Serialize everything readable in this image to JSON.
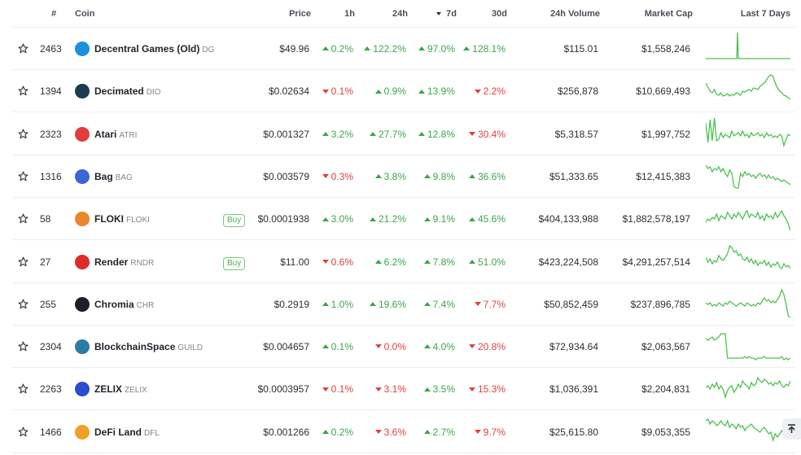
{
  "header": {
    "rank": "#",
    "coin": "Coin",
    "price": "Price",
    "h1": "1h",
    "h24": "24h",
    "d7": "7d",
    "d30": "30d",
    "volume": "24h Volume",
    "mcap": "Market Cap",
    "last7": "Last 7 Days"
  },
  "colors": {
    "up": "#3aa64a",
    "down": "#e0413f",
    "spark": "#4cc24f"
  },
  "rows": [
    {
      "rank": "2463",
      "name": "Decentral Games (Old)",
      "symbol": "DG",
      "price": "$49.96",
      "h1": "0.2%",
      "h1_dir": "up",
      "h24": "122.2%",
      "h24_dir": "up",
      "d7": "97.0%",
      "d7_dir": "up",
      "d30": "128.1%",
      "d30_dir": "up",
      "volume": "$115.01",
      "mcap": "$1,558,246",
      "logo": "#1f8fe0",
      "icon": "dg-logo-icon"
    },
    {
      "rank": "1394",
      "name": "Decimated",
      "symbol": "DIO",
      "price": "$0.02634",
      "h1": "0.1%",
      "h1_dir": "down",
      "h24": "0.9%",
      "h24_dir": "up",
      "d7": "13.9%",
      "d7_dir": "up",
      "d30": "2.2%",
      "d30_dir": "down",
      "volume": "$256,878",
      "mcap": "$10,669,493",
      "logo": "#1b3b4f",
      "icon": "dio-logo-icon"
    },
    {
      "rank": "2323",
      "name": "Atari",
      "symbol": "ATRI",
      "price": "$0.001327",
      "h1": "3.2%",
      "h1_dir": "up",
      "h24": "27.7%",
      "h24_dir": "up",
      "d7": "12.8%",
      "d7_dir": "up",
      "d30": "30.4%",
      "d30_dir": "down",
      "volume": "$5,318.57",
      "mcap": "$1,997,752",
      "logo": "#e23b3b",
      "icon": "atari-logo-icon"
    },
    {
      "rank": "1316",
      "name": "Bag",
      "symbol": "BAG",
      "price": "$0.003579",
      "h1": "0.3%",
      "h1_dir": "down",
      "h24": "3.8%",
      "h24_dir": "up",
      "d7": "9.8%",
      "d7_dir": "up",
      "d30": "36.6%",
      "d30_dir": "up",
      "volume": "$51,333.65",
      "mcap": "$12,415,383",
      "logo": "#3a66d6",
      "icon": "bag-logo-icon"
    },
    {
      "rank": "58",
      "name": "FLOKI",
      "symbol": "FLOKI",
      "buy": "Buy",
      "price": "$0.0001938",
      "h1": "3.0%",
      "h1_dir": "up",
      "h24": "21.2%",
      "h24_dir": "up",
      "d7": "9.1%",
      "d7_dir": "up",
      "d30": "45.6%",
      "d30_dir": "up",
      "volume": "$404,133,988",
      "mcap": "$1,882,578,197",
      "logo": "#e8882a",
      "icon": "floki-logo-icon"
    },
    {
      "rank": "27",
      "name": "Render",
      "symbol": "RNDR",
      "buy": "Buy",
      "price": "$11.00",
      "h1": "0.6%",
      "h1_dir": "down",
      "h24": "6.2%",
      "h24_dir": "up",
      "d7": "7.8%",
      "d7_dir": "up",
      "d30": "51.0%",
      "d30_dir": "up",
      "volume": "$423,224,508",
      "mcap": "$4,291,257,514",
      "logo": "#e02a2a",
      "icon": "render-logo-icon"
    },
    {
      "rank": "255",
      "name": "Chromia",
      "symbol": "CHR",
      "price": "$0.2919",
      "h1": "1.0%",
      "h1_dir": "up",
      "h24": "19.6%",
      "h24_dir": "up",
      "d7": "7.4%",
      "d7_dir": "up",
      "d30": "7.7%",
      "d30_dir": "down",
      "volume": "$50,852,459",
      "mcap": "$237,896,785",
      "logo": "#1e1e2a",
      "icon": "chromia-logo-icon"
    },
    {
      "rank": "2304",
      "name": "BlockchainSpace",
      "symbol": "GUILD",
      "price": "$0.004657",
      "h1": "0.1%",
      "h1_dir": "up",
      "h24": "0.0%",
      "h24_dir": "down",
      "d7": "4.0%",
      "d7_dir": "up",
      "d30": "20.8%",
      "d30_dir": "down",
      "volume": "$72,934.64",
      "mcap": "$2,063,567",
      "logo": "#2c7aa8",
      "icon": "guild-logo-icon"
    },
    {
      "rank": "2263",
      "name": "ZELIX",
      "symbol": "ZELIX",
      "price": "$0.0003957",
      "h1": "0.1%",
      "h1_dir": "down",
      "h24": "3.1%",
      "h24_dir": "down",
      "d7": "3.5%",
      "d7_dir": "up",
      "d30": "15.3%",
      "d30_dir": "down",
      "volume": "$1,036,391",
      "mcap": "$2,204,831",
      "logo": "#2a4ed0",
      "icon": "zelix-logo-icon"
    },
    {
      "rank": "1466",
      "name": "DeFi Land",
      "symbol": "DFL",
      "price": "$0.001266",
      "h1": "0.2%",
      "h1_dir": "up",
      "h24": "3.6%",
      "h24_dir": "down",
      "d7": "2.7%",
      "d7_dir": "up",
      "d30": "9.7%",
      "d30_dir": "down",
      "volume": "$25,615.80",
      "mcap": "$9,053,355",
      "logo": "#f0a028",
      "icon": "defiland-logo-icon"
    }
  ]
}
